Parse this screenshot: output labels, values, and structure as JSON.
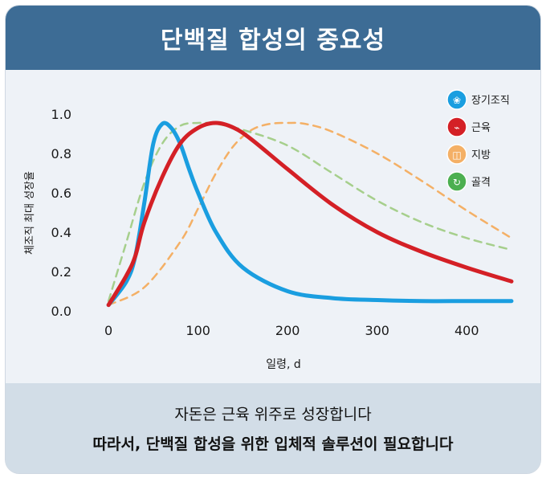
{
  "header": {
    "title": "단백질 합성의 중요성"
  },
  "footer": {
    "line1": "자돈은 근육 위주로 성장합니다",
    "line2": "따라서, 단백질 합성을 위한 입체적 솔루션이 필요합니다"
  },
  "chart_data": {
    "type": "line",
    "title": "",
    "xlabel": "일령, d",
    "ylabel": "체조직 최대 성장율",
    "xlim": [
      -10,
      450
    ],
    "ylim": [
      0,
      1.0
    ],
    "x_ticks": [
      0,
      100,
      200,
      300,
      400
    ],
    "y_ticks": [
      0.0,
      0.2,
      0.4,
      0.6,
      0.8,
      1.0
    ],
    "x_tick_labels": [
      "0",
      "100",
      "200",
      "300",
      "400"
    ],
    "y_tick_labels": [
      "0.0",
      "0.2",
      "0.4",
      "0.6",
      "0.8",
      "1.0"
    ],
    "grid": false,
    "legend_position": "top-right",
    "series": [
      {
        "name": "장기조직",
        "color": "#1a9ee0",
        "style": "solid",
        "x": [
          0,
          20,
          30,
          40,
          50,
          60,
          70,
          80,
          90,
          100,
          120,
          150,
          200,
          250,
          300,
          350,
          400,
          450
        ],
        "y": [
          0.03,
          0.15,
          0.28,
          0.55,
          0.85,
          0.95,
          0.93,
          0.85,
          0.72,
          0.6,
          0.4,
          0.22,
          0.1,
          0.065,
          0.055,
          0.05,
          0.05,
          0.05
        ]
      },
      {
        "name": "근육",
        "color": "#d42026",
        "style": "solid",
        "x": [
          0,
          20,
          30,
          40,
          60,
          80,
          100,
          120,
          140,
          160,
          200,
          250,
          300,
          350,
          400,
          450
        ],
        "y": [
          0.03,
          0.18,
          0.28,
          0.45,
          0.68,
          0.85,
          0.93,
          0.955,
          0.93,
          0.87,
          0.72,
          0.54,
          0.4,
          0.3,
          0.22,
          0.15
        ]
      },
      {
        "name": "지방",
        "color": "#f4b066",
        "style": "dashed",
        "x": [
          0,
          40,
          80,
          100,
          120,
          140,
          160,
          180,
          200,
          220,
          250,
          300,
          350,
          400,
          450
        ],
        "y": [
          0.03,
          0.12,
          0.35,
          0.52,
          0.7,
          0.84,
          0.92,
          0.95,
          0.955,
          0.95,
          0.91,
          0.8,
          0.66,
          0.51,
          0.37
        ]
      },
      {
        "name": "골격",
        "color": "#a6cf8c",
        "style": "dashed",
        "x": [
          0,
          20,
          40,
          60,
          80,
          100,
          120,
          150,
          200,
          250,
          300,
          350,
          400,
          450
        ],
        "y": [
          0.05,
          0.35,
          0.65,
          0.85,
          0.94,
          0.955,
          0.95,
          0.92,
          0.84,
          0.7,
          0.56,
          0.45,
          0.37,
          0.31
        ]
      }
    ]
  },
  "legend_icons": [
    "organ-icon",
    "muscle-icon",
    "fat-icon",
    "bone-icon"
  ]
}
